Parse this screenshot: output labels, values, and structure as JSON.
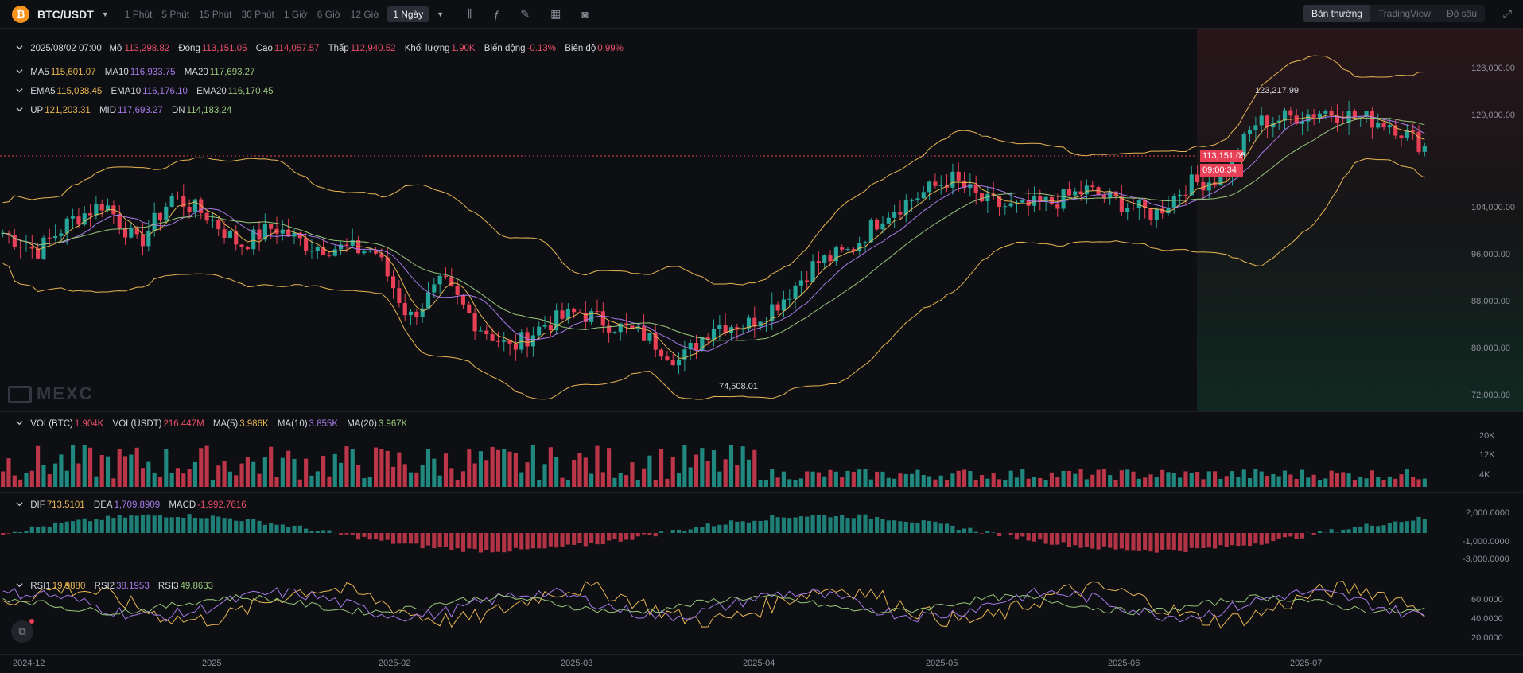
{
  "symbol": {
    "name": "BTC/USDT",
    "logo_glyph": "₿",
    "dropdown_icon": "triangle-down-icon"
  },
  "timeframes": [
    "1 Phút",
    "5 Phút",
    "15 Phút",
    "30 Phút",
    "1 Giờ",
    "6 Giờ",
    "12 Giờ"
  ],
  "active_timeframe": "1 Ngày",
  "tools": [
    "candle-type-icon",
    "indicator-icon",
    "draw-icon",
    "layout-icon",
    "camera-icon"
  ],
  "views": [
    "Bản thường",
    "TradingView",
    "Độ sâu"
  ],
  "active_view": "Bản thường",
  "ohlc": {
    "date": "2025/08/02 07:00",
    "open_label": "Mở",
    "open": "113,298.82",
    "close_label": "Đóng",
    "close": "113,151.05",
    "high_label": "Cao",
    "high": "114,057.57",
    "low_label": "Thấp",
    "low": "112,940.52",
    "volume_label": "Khối lượng",
    "volume": "1.90K",
    "change_label": "Biến động",
    "change": "-0.13%",
    "amplitude_label": "Biên độ",
    "amplitude": "0.99%"
  },
  "ma": {
    "ma5_label": "MA5",
    "ma5": "115,601.07",
    "ma10_label": "MA10",
    "ma10": "116,933.75",
    "ma20_label": "MA20",
    "ma20": "117,693.27"
  },
  "ema": {
    "ema5_label": "EMA5",
    "ema5": "115,038.45",
    "ema10_label": "EMA10",
    "ema10": "116,176.10",
    "ema20_label": "EMA20",
    "ema20": "116,170.45"
  },
  "boll": {
    "up_label": "UP",
    "up": "121,203.31",
    "mid_label": "MID",
    "mid": "117,693.27",
    "dn_label": "DN",
    "dn": "114,183.24"
  },
  "price_axis": [
    "128,000.00",
    "120,000.00",
    "104,000.00",
    "96,000.00",
    "88,000.00",
    "80,000.00",
    "72,000.00"
  ],
  "current_price": "113,151.05",
  "countdown": "09:00:34",
  "high_marker": "123,217.99",
  "low_marker": "74,508.01",
  "watermark": "MEXC",
  "vol": {
    "btc_label": "VOL(BTC)",
    "btc": "1.904K",
    "usdt_label": "VOL(USDT)",
    "usdt": "216.447M",
    "ma5_label": "MA(5)",
    "ma5": "3.986K",
    "ma10_label": "MA(10)",
    "ma10": "3.855K",
    "ma20_label": "MA(20)",
    "ma20": "3.967K"
  },
  "vol_axis": [
    "20K",
    "12K",
    "4K"
  ],
  "macd": {
    "dif_label": "DIF",
    "dif": "713.5101",
    "dea_label": "DEA",
    "dea": "1,709.8909",
    "macd_label": "MACD",
    "macd": "-1,992.7616"
  },
  "macd_axis": [
    "2,000.0000",
    "-1,000.0000",
    "-3,000.0000"
  ],
  "rsi": {
    "rsi1_label": "RSI1",
    "rsi1": "19.9880",
    "rsi2_label": "RSI2",
    "rsi2": "38.1953",
    "rsi3_label": "RSI3",
    "rsi3": "49.8633"
  },
  "rsi_axis": [
    "60.0000",
    "40.0000",
    "20.0000"
  ],
  "time_axis": [
    "2024-12",
    "2025",
    "2025-02",
    "2025-03",
    "2025-04",
    "2025-05",
    "2025-06",
    "2025-07"
  ],
  "colors": {
    "up": "#26a69a",
    "down": "#e84057",
    "ma5": "#e8b652",
    "ma10": "#a77ae8",
    "ma20": "#98c77b",
    "boll": "#e8b652",
    "background": "#0e0f13"
  },
  "chart_data": {
    "type": "candlestick",
    "interval": "1 Ngày",
    "dates": [
      "2024-12",
      "2025",
      "2025-02",
      "2025-03",
      "2025-04",
      "2025-05",
      "2025-06",
      "2025-07"
    ],
    "price_path": [
      99000,
      96000,
      101000,
      104000,
      97000,
      105000,
      102000,
      97000,
      100000,
      97000,
      96500,
      96000,
      85000,
      91000,
      84000,
      80000,
      84000,
      86000,
      84000,
      82000,
      78000,
      84000,
      84000,
      88000,
      94000,
      96000,
      102000,
      105000,
      108000,
      104000,
      103000,
      104000,
      106000,
      104000,
      102000,
      107000,
      108000,
      117000,
      118000,
      119000,
      118000,
      117000,
      113151
    ],
    "ylim": [
      70000,
      132000
    ],
    "annotations": [
      "123,217.99",
      "74,508.01"
    ]
  }
}
